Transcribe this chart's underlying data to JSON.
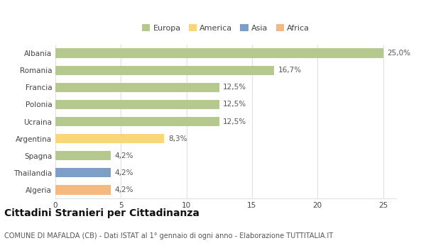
{
  "countries": [
    "Albania",
    "Romania",
    "Francia",
    "Polonia",
    "Ucraina",
    "Argentina",
    "Spagna",
    "Thailandia",
    "Algeria"
  ],
  "values": [
    25.0,
    16.7,
    12.5,
    12.5,
    12.5,
    8.3,
    4.2,
    4.2,
    4.2
  ],
  "labels": [
    "25,0%",
    "16,7%",
    "12,5%",
    "12,5%",
    "12,5%",
    "8,3%",
    "4,2%",
    "4,2%",
    "4,2%"
  ],
  "colors": [
    "#b5c98e",
    "#b5c98e",
    "#b5c98e",
    "#b5c98e",
    "#b5c98e",
    "#f9d67a",
    "#b5c98e",
    "#7b9fc7",
    "#f5b97f"
  ],
  "legend_labels": [
    "Europa",
    "America",
    "Asia",
    "Africa"
  ],
  "legend_colors": [
    "#b5c98e",
    "#f9d67a",
    "#7b9fc7",
    "#f5b97f"
  ],
  "xlim": [
    0,
    26
  ],
  "xticks": [
    0,
    5,
    10,
    15,
    20,
    25
  ],
  "title": "Cittadini Stranieri per Cittadinanza",
  "subtitle": "COMUNE DI MAFALDA (CB) - Dati ISTAT al 1° gennaio di ogni anno - Elaborazione TUTTITALIA.IT",
  "bg_color": "#ffffff",
  "plot_bg_color": "#ffffff",
  "grid_color": "#e0e0e0",
  "bar_height": 0.55,
  "label_fontsize": 7.5,
  "title_fontsize": 10,
  "subtitle_fontsize": 7,
  "tick_fontsize": 7.5,
  "legend_fontsize": 8
}
